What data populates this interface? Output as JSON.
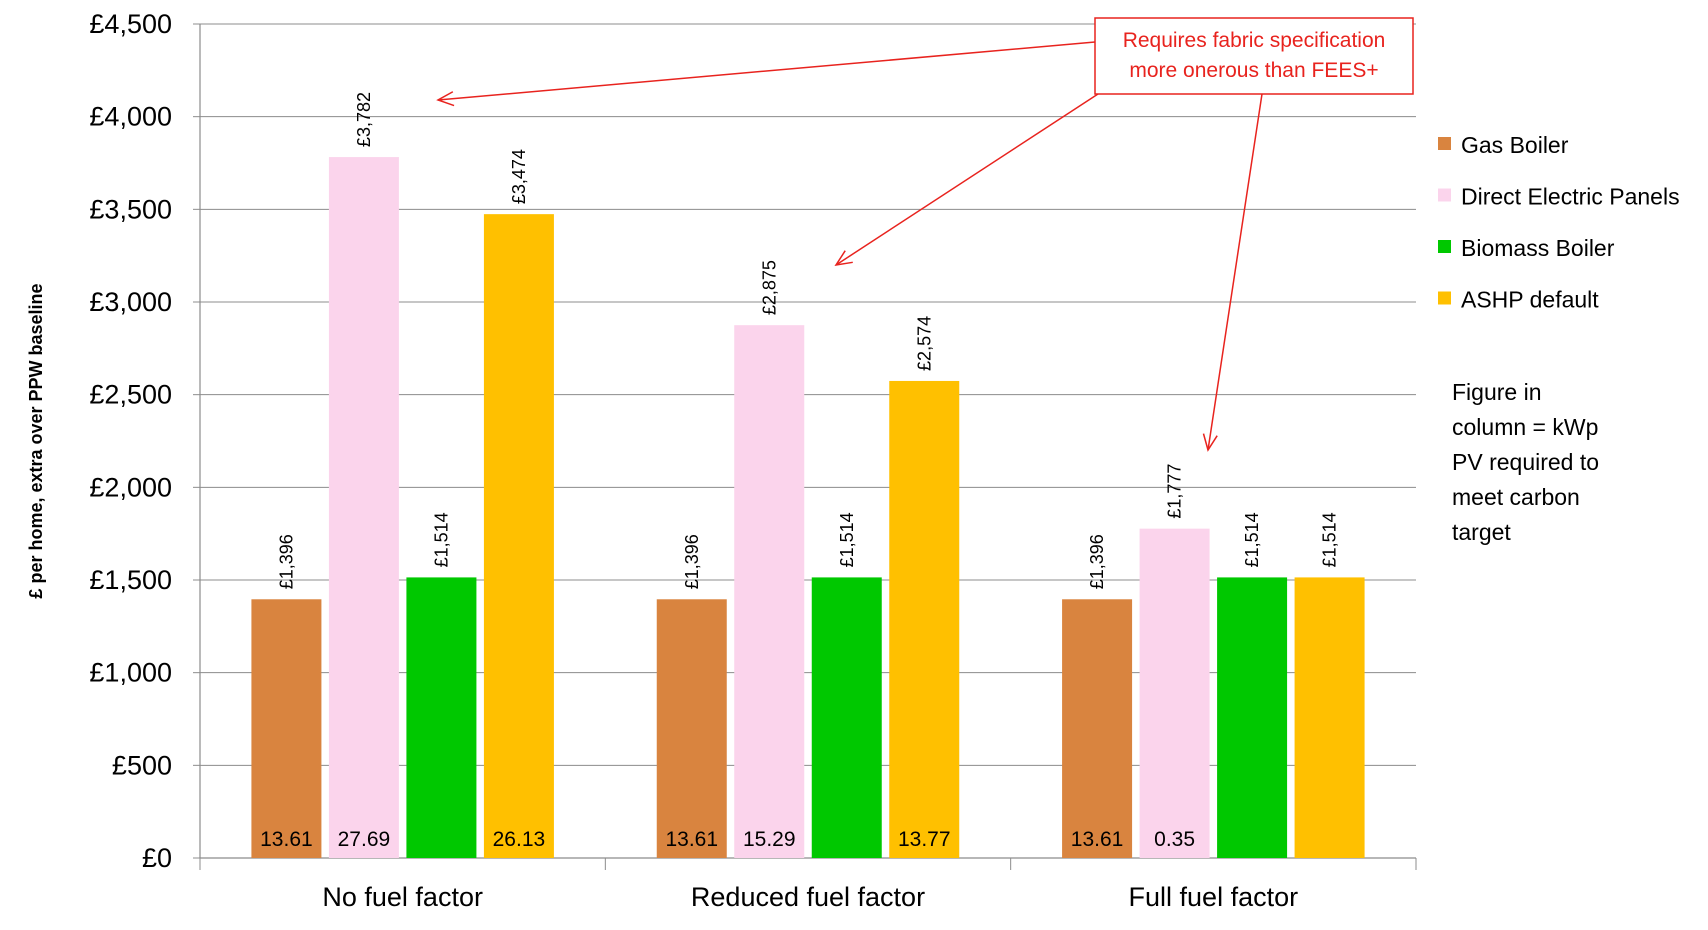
{
  "chart_data": {
    "type": "bar",
    "categories": [
      "No fuel factor",
      "Reduced fuel factor",
      "Full fuel factor"
    ],
    "ylabel": "£ per home, extra over PPW baseline",
    "ylim": [
      0,
      4500
    ],
    "y_ticks": [
      0,
      500,
      1000,
      1500,
      2000,
      2500,
      3000,
      3500,
      4000,
      4500
    ],
    "y_tick_labels": [
      "£0",
      "£500",
      "£1,000",
      "£1,500",
      "£2,000",
      "£2,500",
      "£3,000",
      "£3,500",
      "£4,000",
      "£4,500"
    ],
    "grid": true,
    "legend_position": "right",
    "series": [
      {
        "name": "Gas Boiler",
        "color": "#D9843F",
        "values": [
          1396,
          1396,
          1396
        ],
        "value_labels": [
          "£1,396",
          "£1,396",
          "£1,396"
        ],
        "inner_labels": [
          "13.61",
          "13.61",
          "13.61"
        ]
      },
      {
        "name": "Direct Electric Panels",
        "color": "#FBD4EC",
        "values": [
          3782,
          2875,
          1777
        ],
        "value_labels": [
          "£3,782",
          "£2,875",
          "£1,777"
        ],
        "inner_labels": [
          "27.69",
          "15.29",
          "0.35"
        ]
      },
      {
        "name": "Biomass Boiler",
        "color": "#00C800",
        "values": [
          1514,
          1514,
          1514
        ],
        "value_labels": [
          "£1,514",
          "£1,514",
          "£1,514"
        ],
        "inner_labels": [
          "",
          "",
          ""
        ]
      },
      {
        "name": "ASHP default",
        "color": "#FFC000",
        "values": [
          3474,
          2574,
          1514
        ],
        "value_labels": [
          "£3,474",
          "£2,574",
          "£1,514"
        ],
        "inner_labels": [
          "26.13",
          "13.77",
          ""
        ]
      }
    ],
    "annotations": {
      "callout_lines": [
        "Requires fabric specification",
        "more onerous than FEES+"
      ],
      "callout_color": "#E8231E",
      "note_lines": [
        "Figure in",
        "column = kWp",
        "PV required to",
        "meet carbon",
        "target"
      ]
    }
  }
}
